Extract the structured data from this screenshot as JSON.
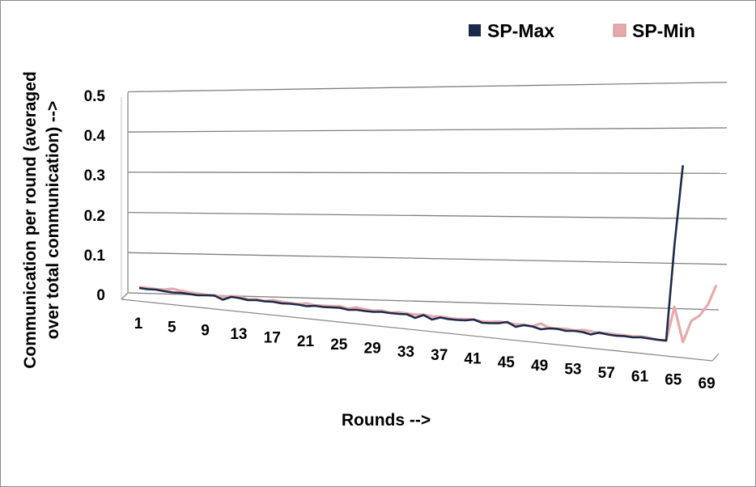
{
  "chart_data": {
    "type": "line",
    "style": "3d-perspective",
    "title": "",
    "xlabel": "Rounds -->",
    "ylabel_lines": [
      "Communication per round (averaged",
      "over total communication) -->"
    ],
    "ylim": [
      0,
      0.5
    ],
    "yticks": [
      0,
      0.1,
      0.2,
      0.3,
      0.4,
      0.5
    ],
    "ytick_labels": [
      "0",
      "0.1",
      "0.2",
      "0.3",
      "0.4",
      "0.5"
    ],
    "x_range": [
      1,
      70
    ],
    "xtick_labels": [
      "1",
      "5",
      "9",
      "13",
      "17",
      "21",
      "25",
      "29",
      "33",
      "37",
      "41",
      "45",
      "49",
      "53",
      "57",
      "61",
      "65",
      "69"
    ],
    "grid": true,
    "legend_position": "top-right",
    "series": [
      {
        "name": "SP-Max",
        "color": "#1b2a4a",
        "x": [
          1,
          2,
          3,
          4,
          5,
          6,
          7,
          8,
          9,
          10,
          11,
          12,
          13,
          14,
          15,
          16,
          17,
          18,
          19,
          20,
          21,
          22,
          23,
          24,
          25,
          26,
          27,
          28,
          29,
          30,
          31,
          32,
          33,
          34,
          35,
          36,
          37,
          38,
          39,
          40,
          41,
          42,
          43,
          44,
          45,
          46,
          47,
          48,
          49,
          50,
          51,
          52,
          53,
          54,
          55,
          56,
          57,
          58,
          59,
          60,
          61,
          62,
          63,
          64,
          65,
          66
        ],
        "values": [
          0.004,
          0.003,
          0.004,
          0.002,
          0.001,
          0.002,
          0.001,
          0,
          0.002,
          0.003,
          -0.005,
          0.004,
          0.003,
          0,
          0.002,
          0.001,
          0.002,
          0,
          0.001,
          0.001,
          -0.001,
          0.002,
          0.001,
          0.002,
          0.003,
          0,
          0.002,
          0.001,
          0.001,
          0.003,
          0.002,
          0.002,
          0.003,
          -0.004,
          0.005,
          -0.004,
          0.003,
          0.001,
          0.001,
          0.002,
          0.006,
          0,
          0.001,
          0.003,
          0.008,
          -0.002,
          0.004,
          0.003,
          -0.002,
          0.002,
          0.003,
          0,
          0.002,
          0.001,
          -0.003,
          0.004,
          0.001,
          0,
          0.001,
          0,
          0.002,
          0.001,
          0,
          0,
          0.24,
          0.44
        ]
      },
      {
        "name": "SP-Min",
        "color": "#e6aaaa",
        "x": [
          1,
          2,
          3,
          4,
          5,
          6,
          7,
          8,
          9,
          10,
          11,
          12,
          13,
          14,
          15,
          16,
          17,
          18,
          19,
          20,
          21,
          22,
          23,
          24,
          25,
          26,
          27,
          28,
          29,
          30,
          31,
          32,
          33,
          34,
          35,
          36,
          37,
          38,
          39,
          40,
          41,
          42,
          43,
          44,
          45,
          46,
          47,
          48,
          49,
          50,
          51,
          52,
          53,
          54,
          55,
          56,
          57,
          58,
          59,
          60,
          61,
          62,
          63,
          64,
          65,
          66,
          67,
          68,
          69,
          70
        ],
        "values": [
          0.006,
          0.006,
          0.005,
          0.006,
          0.01,
          0.007,
          0.005,
          0.004,
          0.003,
          0.004,
          0.002,
          0.006,
          0.007,
          0.002,
          0.004,
          0.002,
          0.006,
          0.004,
          0.003,
          0.002,
          0.006,
          0.003,
          0.004,
          0.005,
          0.007,
          0.003,
          0.008,
          0.005,
          0.004,
          0.006,
          0.003,
          0.006,
          0.005,
          0.004,
          0.006,
          0.004,
          0.005,
          0.004,
          0.003,
          0.005,
          0.006,
          0.003,
          0.004,
          0.007,
          0.006,
          0.004,
          0.005,
          0.003,
          0.012,
          0.004,
          0.003,
          0.005,
          0.003,
          0.006,
          0.005,
          0.002,
          0.004,
          0.003,
          0.003,
          0.002,
          0.004,
          0.003,
          0,
          0,
          0.086,
          0,
          0.055,
          0.07,
          0.1,
          0.15
        ]
      }
    ]
  }
}
